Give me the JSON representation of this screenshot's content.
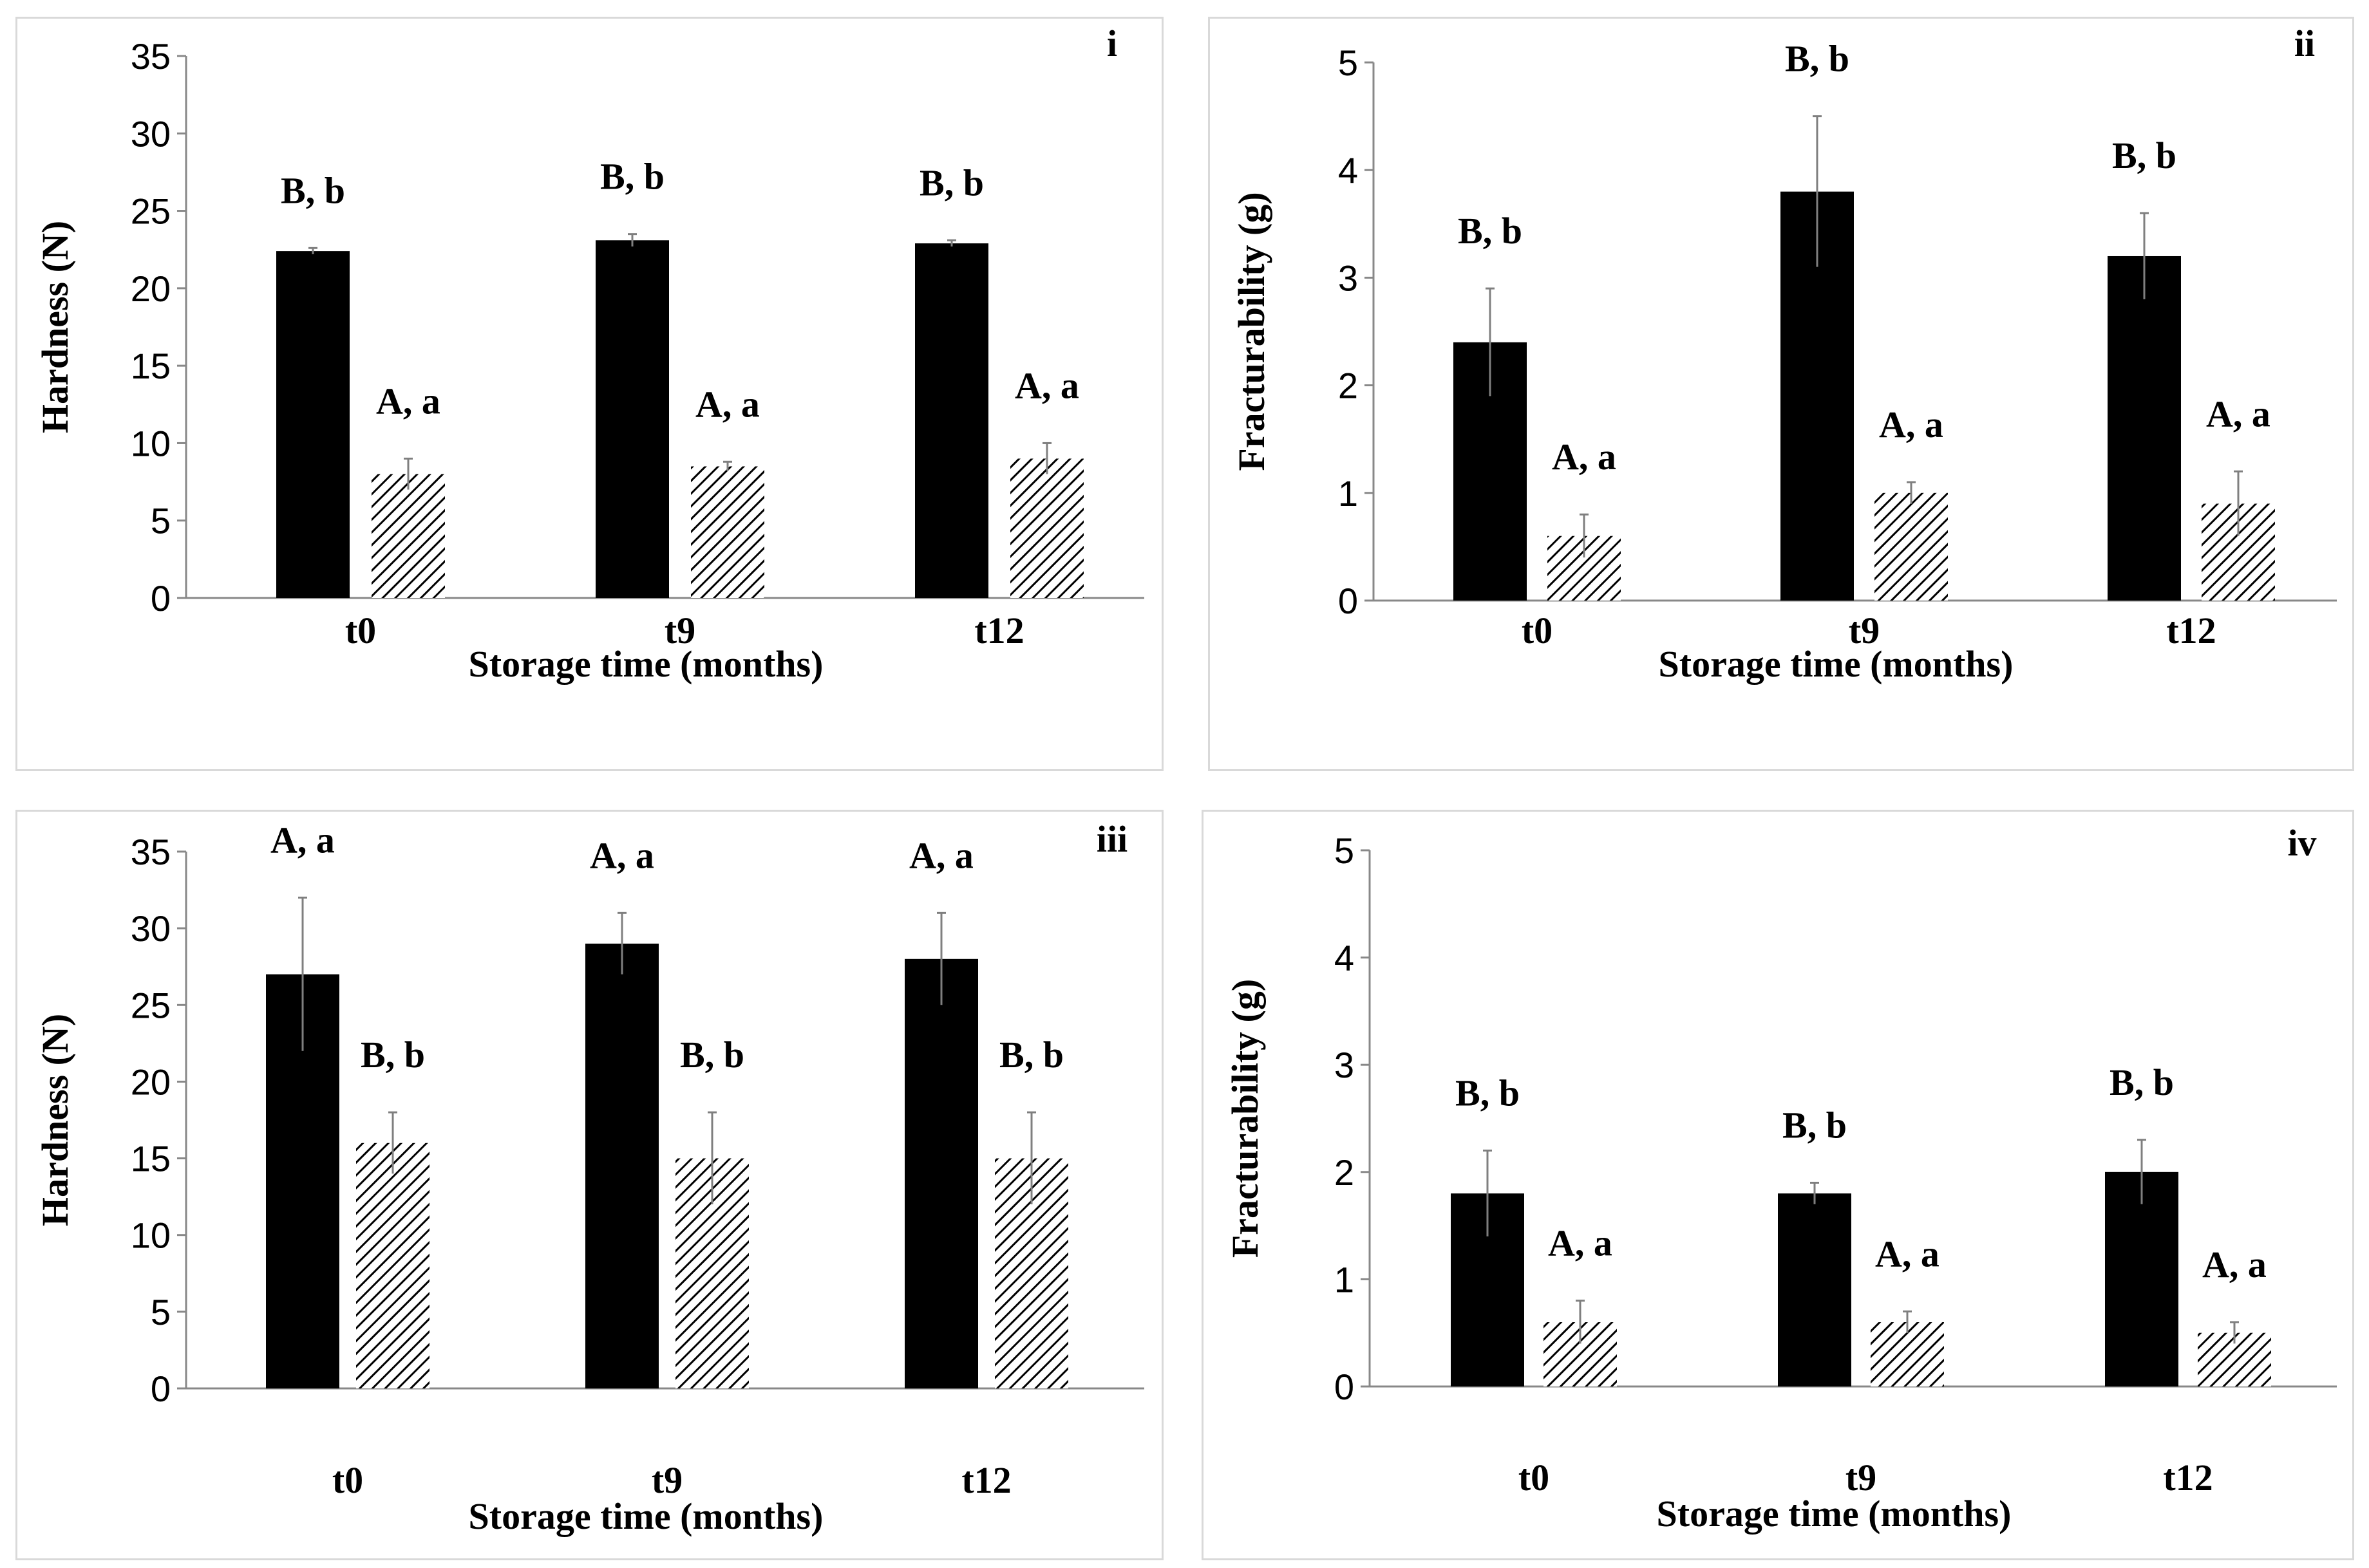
{
  "figure": {
    "series_styles": {
      "series1": {
        "fill": "#000000"
      },
      "series2": {
        "fill": "hatch",
        "hatch_color": "#000000"
      }
    }
  },
  "chart_data": [
    {
      "panel": "i",
      "type": "bar",
      "xlabel": "Storage time (months)",
      "ylabel": "Hardness (N)",
      "ylim": [
        0,
        35
      ],
      "yticks": [
        0,
        5,
        10,
        15,
        20,
        25,
        30,
        35
      ],
      "categories": [
        "t0",
        "t9",
        "t12"
      ],
      "series": [
        {
          "name": "series1",
          "values": [
            22.4,
            23.1,
            22.9
          ],
          "errors": [
            0.2,
            0.4,
            0.2
          ],
          "labels": [
            "B, b",
            "B, b",
            "B, b"
          ]
        },
        {
          "name": "series2",
          "values": [
            8.0,
            8.5,
            9.0
          ],
          "errors": [
            1.0,
            0.3,
            1.0
          ],
          "labels": [
            "A, a",
            "A, a",
            "A, a"
          ]
        }
      ]
    },
    {
      "panel": "ii",
      "type": "bar",
      "xlabel": "Storage time (months)",
      "ylabel": "Fracturability (g)",
      "ylim": [
        0,
        5
      ],
      "yticks": [
        0,
        1,
        2,
        3,
        4,
        5
      ],
      "categories": [
        "t0",
        "t9",
        "t12"
      ],
      "series": [
        {
          "name": "series1",
          "values": [
            2.4,
            3.8,
            3.2
          ],
          "errors": [
            0.5,
            0.7,
            0.4
          ],
          "labels": [
            "B, b",
            "B, b",
            "B, b"
          ]
        },
        {
          "name": "series2",
          "values": [
            0.6,
            1.0,
            0.9
          ],
          "errors": [
            0.2,
            0.1,
            0.3
          ],
          "labels": [
            "A, a",
            "A, a",
            "A, a"
          ]
        }
      ]
    },
    {
      "panel": "iii",
      "type": "bar",
      "xlabel": "Storage time (months)",
      "ylabel": "Hardness (N)",
      "ylim": [
        0,
        35
      ],
      "yticks": [
        0,
        5,
        10,
        15,
        20,
        25,
        30,
        35
      ],
      "categories": [
        "t0",
        "t9",
        "t12"
      ],
      "series": [
        {
          "name": "series1",
          "values": [
            27,
            29,
            28
          ],
          "errors": [
            5,
            2,
            3
          ],
          "labels": [
            "A, a",
            "A, a",
            "A, a"
          ]
        },
        {
          "name": "series2",
          "values": [
            16,
            15,
            15
          ],
          "errors": [
            2,
            3,
            3
          ],
          "labels": [
            "B, b",
            "B, b",
            "B, b"
          ]
        }
      ]
    },
    {
      "panel": "iv",
      "type": "bar",
      "xlabel": "Storage time (months)",
      "ylabel": "Fracturability (g)",
      "ylim": [
        0,
        5
      ],
      "yticks": [
        0,
        1,
        2,
        3,
        4,
        5
      ],
      "categories": [
        "t0",
        "t9",
        "t12"
      ],
      "series": [
        {
          "name": "series1",
          "values": [
            1.8,
            1.8,
            2.0
          ],
          "errors": [
            0.4,
            0.1,
            0.3
          ],
          "labels": [
            "B, b",
            "B, b",
            "B, b"
          ]
        },
        {
          "name": "series2",
          "values": [
            0.6,
            0.6,
            0.5
          ],
          "errors": [
            0.2,
            0.1,
            0.1
          ],
          "labels": [
            "A, a",
            "A, a",
            "A, a"
          ]
        }
      ]
    }
  ]
}
